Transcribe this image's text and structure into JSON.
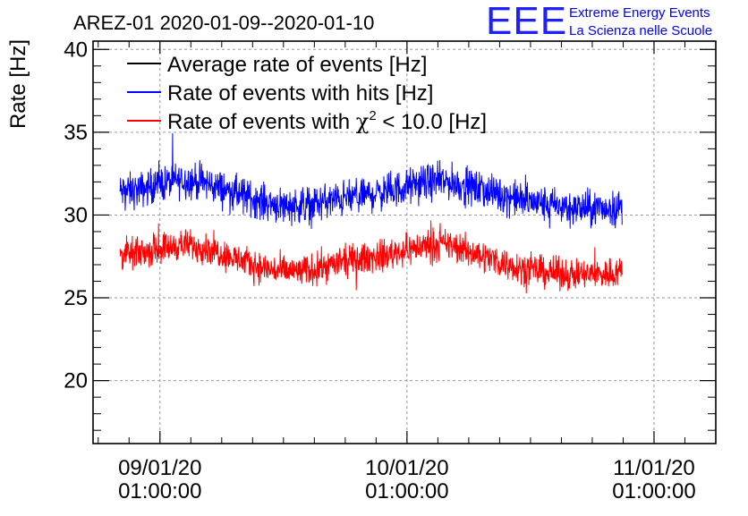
{
  "chart_data": {
    "type": "line",
    "title": "AREZ-01 2020-01-09--2020-01-10",
    "ylabel": "Rate [Hz]",
    "xlabel": "",
    "ylim": [
      16.2,
      40.5
    ],
    "xlim_hours": [
      -6.5,
      54.0
    ],
    "y_ticks": [
      20,
      25,
      30,
      35,
      40
    ],
    "x_ticks": [
      {
        "hours": 0,
        "date": "09/01/20",
        "time": "01:00:00"
      },
      {
        "hours": 24,
        "date": "10/01/20",
        "time": "01:00:00"
      },
      {
        "hours": 48,
        "date": "11/01/20",
        "time": "01:00:00"
      }
    ],
    "grid": true,
    "legend": {
      "placement": "top-left",
      "entries": [
        {
          "label": "Average rate of events [Hz]",
          "color": "#000000"
        },
        {
          "label": "Rate of events with hits [Hz]",
          "color": "#0000ff"
        },
        {
          "label_main": "Rate of events with ",
          "label_symbol": "χ",
          "label_sup": "2",
          "label_tail": " < 10.0 [Hz]",
          "color": "#ff0000"
        }
      ]
    },
    "logo": {
      "text": "EEE",
      "line1": "Extreme Energy Events",
      "line2": "La Scienza nelle Scuole",
      "color": "#0000ff"
    },
    "series": [
      {
        "name": "Rate of events with hits [Hz]",
        "color": "#0000ff",
        "x_hours": [
          -3.9,
          -2.0,
          0.0,
          2.0,
          4.0,
          6.0,
          8.0,
          10.0,
          12.0,
          14.0,
          16.0,
          18.0,
          20.0,
          22.0,
          24.0,
          26.0,
          28.0,
          30.0,
          32.0,
          34.0,
          36.0,
          38.0,
          40.0,
          42.0,
          44.0,
          44.9
        ],
        "mean": [
          31.4,
          31.5,
          31.9,
          32.1,
          32.0,
          31.6,
          31.2,
          30.8,
          30.6,
          30.6,
          30.8,
          31.0,
          31.2,
          31.4,
          31.7,
          32.0,
          32.0,
          31.7,
          31.4,
          31.1,
          30.8,
          30.6,
          30.4,
          30.4,
          30.4,
          30.5
        ],
        "spread": 0.8
      },
      {
        "name": "Rate of events with χ2 < 10.0 [Hz]",
        "color": "#ff0000",
        "x_hours": [
          -3.9,
          -2.0,
          0.0,
          2.0,
          4.0,
          6.0,
          8.0,
          10.0,
          12.0,
          14.0,
          16.0,
          18.0,
          20.0,
          22.0,
          24.0,
          26.0,
          28.0,
          30.0,
          32.0,
          34.0,
          36.0,
          38.0,
          40.0,
          42.0,
          44.0,
          44.9
        ],
        "mean": [
          27.6,
          27.7,
          28.0,
          28.2,
          28.1,
          27.7,
          27.2,
          26.8,
          26.6,
          26.6,
          26.9,
          27.2,
          27.4,
          27.6,
          27.9,
          28.2,
          28.2,
          27.8,
          27.4,
          27.0,
          26.7,
          26.5,
          26.4,
          26.4,
          26.5,
          26.7
        ],
        "spread": 0.7
      }
    ]
  }
}
